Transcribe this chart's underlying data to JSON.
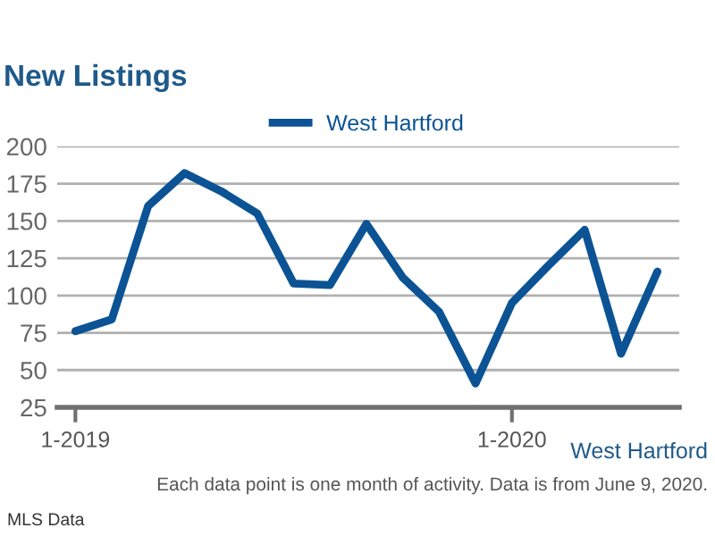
{
  "chart_data": {
    "type": "line",
    "title": "New Listings",
    "categories": [
      "1-2019",
      null,
      null,
      null,
      null,
      null,
      null,
      null,
      null,
      null,
      null,
      null,
      "1-2020",
      null,
      null,
      null,
      null
    ],
    "series": [
      {
        "name": "West Hartford",
        "color": "#0b5394",
        "values": [
          76,
          84,
          160,
          182,
          170,
          155,
          108,
          107,
          148,
          112,
          89,
          41,
          95,
          120,
          144,
          61,
          116
        ]
      }
    ],
    "ylim": [
      25,
      200
    ],
    "yticks": [
      25,
      50,
      75,
      100,
      125,
      150,
      175,
      200
    ],
    "grid": "y",
    "legend": "top",
    "marker": "none",
    "line_style": "solid",
    "annotations": [
      "West Hartford",
      "Each data point is one month of activity. Data is from June 9, 2020.",
      "MLS Data"
    ]
  }
}
